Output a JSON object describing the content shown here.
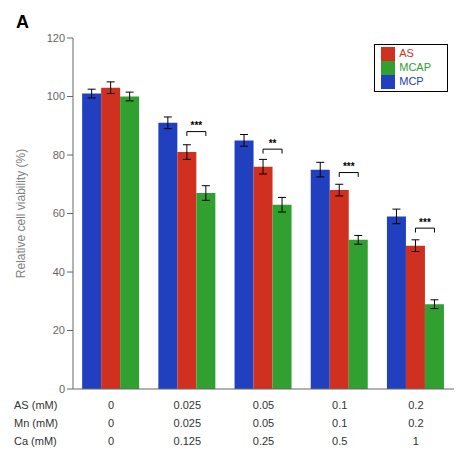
{
  "chart_data": {
    "type": "bar",
    "title": "A",
    "y_label": "Relative cell viability (%)",
    "categories": [
      "0",
      "0.025",
      "0.05",
      "0.1",
      "0.2"
    ],
    "series": [
      {
        "name": "MCP",
        "color": "#2040c0",
        "values": [
          101,
          91,
          85,
          75,
          59
        ],
        "errors": [
          1.5,
          2.0,
          2.0,
          2.5,
          2.5
        ]
      },
      {
        "name": "AS",
        "color": "#d03020",
        "values": [
          103,
          81,
          76,
          68,
          49
        ],
        "errors": [
          2.0,
          2.5,
          2.5,
          2.0,
          2.0
        ]
      },
      {
        "name": "MCAP",
        "color": "#30a030",
        "values": [
          100,
          67,
          63,
          51,
          29
        ],
        "errors": [
          1.5,
          2.5,
          2.5,
          1.5,
          1.5
        ]
      }
    ],
    "ylim": [
      0,
      120
    ],
    "yticks": [
      0,
      20,
      40,
      60,
      80,
      100,
      120
    ],
    "grid": false,
    "legend": "upper right",
    "significance": [
      {
        "category": "0.025",
        "text": "***",
        "y": 88
      },
      {
        "category": "0.05",
        "text": "**",
        "y": 82
      },
      {
        "category": "0.1",
        "text": "***",
        "y": 74
      },
      {
        "category": "0.2",
        "text": "***",
        "y": 55
      }
    ],
    "x_label_rows": [
      {
        "label": "AS (mM)",
        "values": [
          "0",
          "0.025",
          "0.05",
          "0.1",
          "0.2"
        ]
      },
      {
        "label": "Mn (mM)",
        "values": [
          "0",
          "0.025",
          "0.05",
          "0.1",
          "0.2"
        ]
      },
      {
        "label": "Ca (mM)",
        "values": [
          "0",
          "0.125",
          "0.25",
          "0.5",
          "1"
        ]
      }
    ]
  }
}
